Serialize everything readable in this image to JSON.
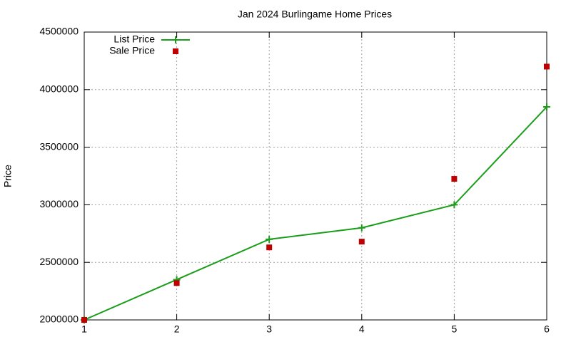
{
  "chart_data": {
    "type": "line",
    "title": "Jan 2024 Burlingame Home Prices",
    "y_label": "Price",
    "x": [
      1,
      2,
      3,
      4,
      5,
      6
    ],
    "series": [
      {
        "name": "List Price",
        "color": "#1a9e1a",
        "style": "linespoints",
        "values": [
          2000000,
          2350000,
          2700000,
          2800000,
          3000000,
          3850000
        ]
      },
      {
        "name": "Sale Price",
        "color": "#c00000",
        "style": "points",
        "values": [
          2000000,
          2320000,
          2630000,
          2680000,
          3225000,
          4200000
        ]
      }
    ],
    "xlim": [
      1,
      6
    ],
    "xticks": [
      1,
      2,
      3,
      4,
      5,
      6
    ],
    "ylim": [
      2000000,
      4500000
    ],
    "yticks": [
      2000000,
      2500000,
      3000000,
      3500000,
      4000000,
      4500000
    ],
    "grid": true,
    "legend": "top-left"
  }
}
